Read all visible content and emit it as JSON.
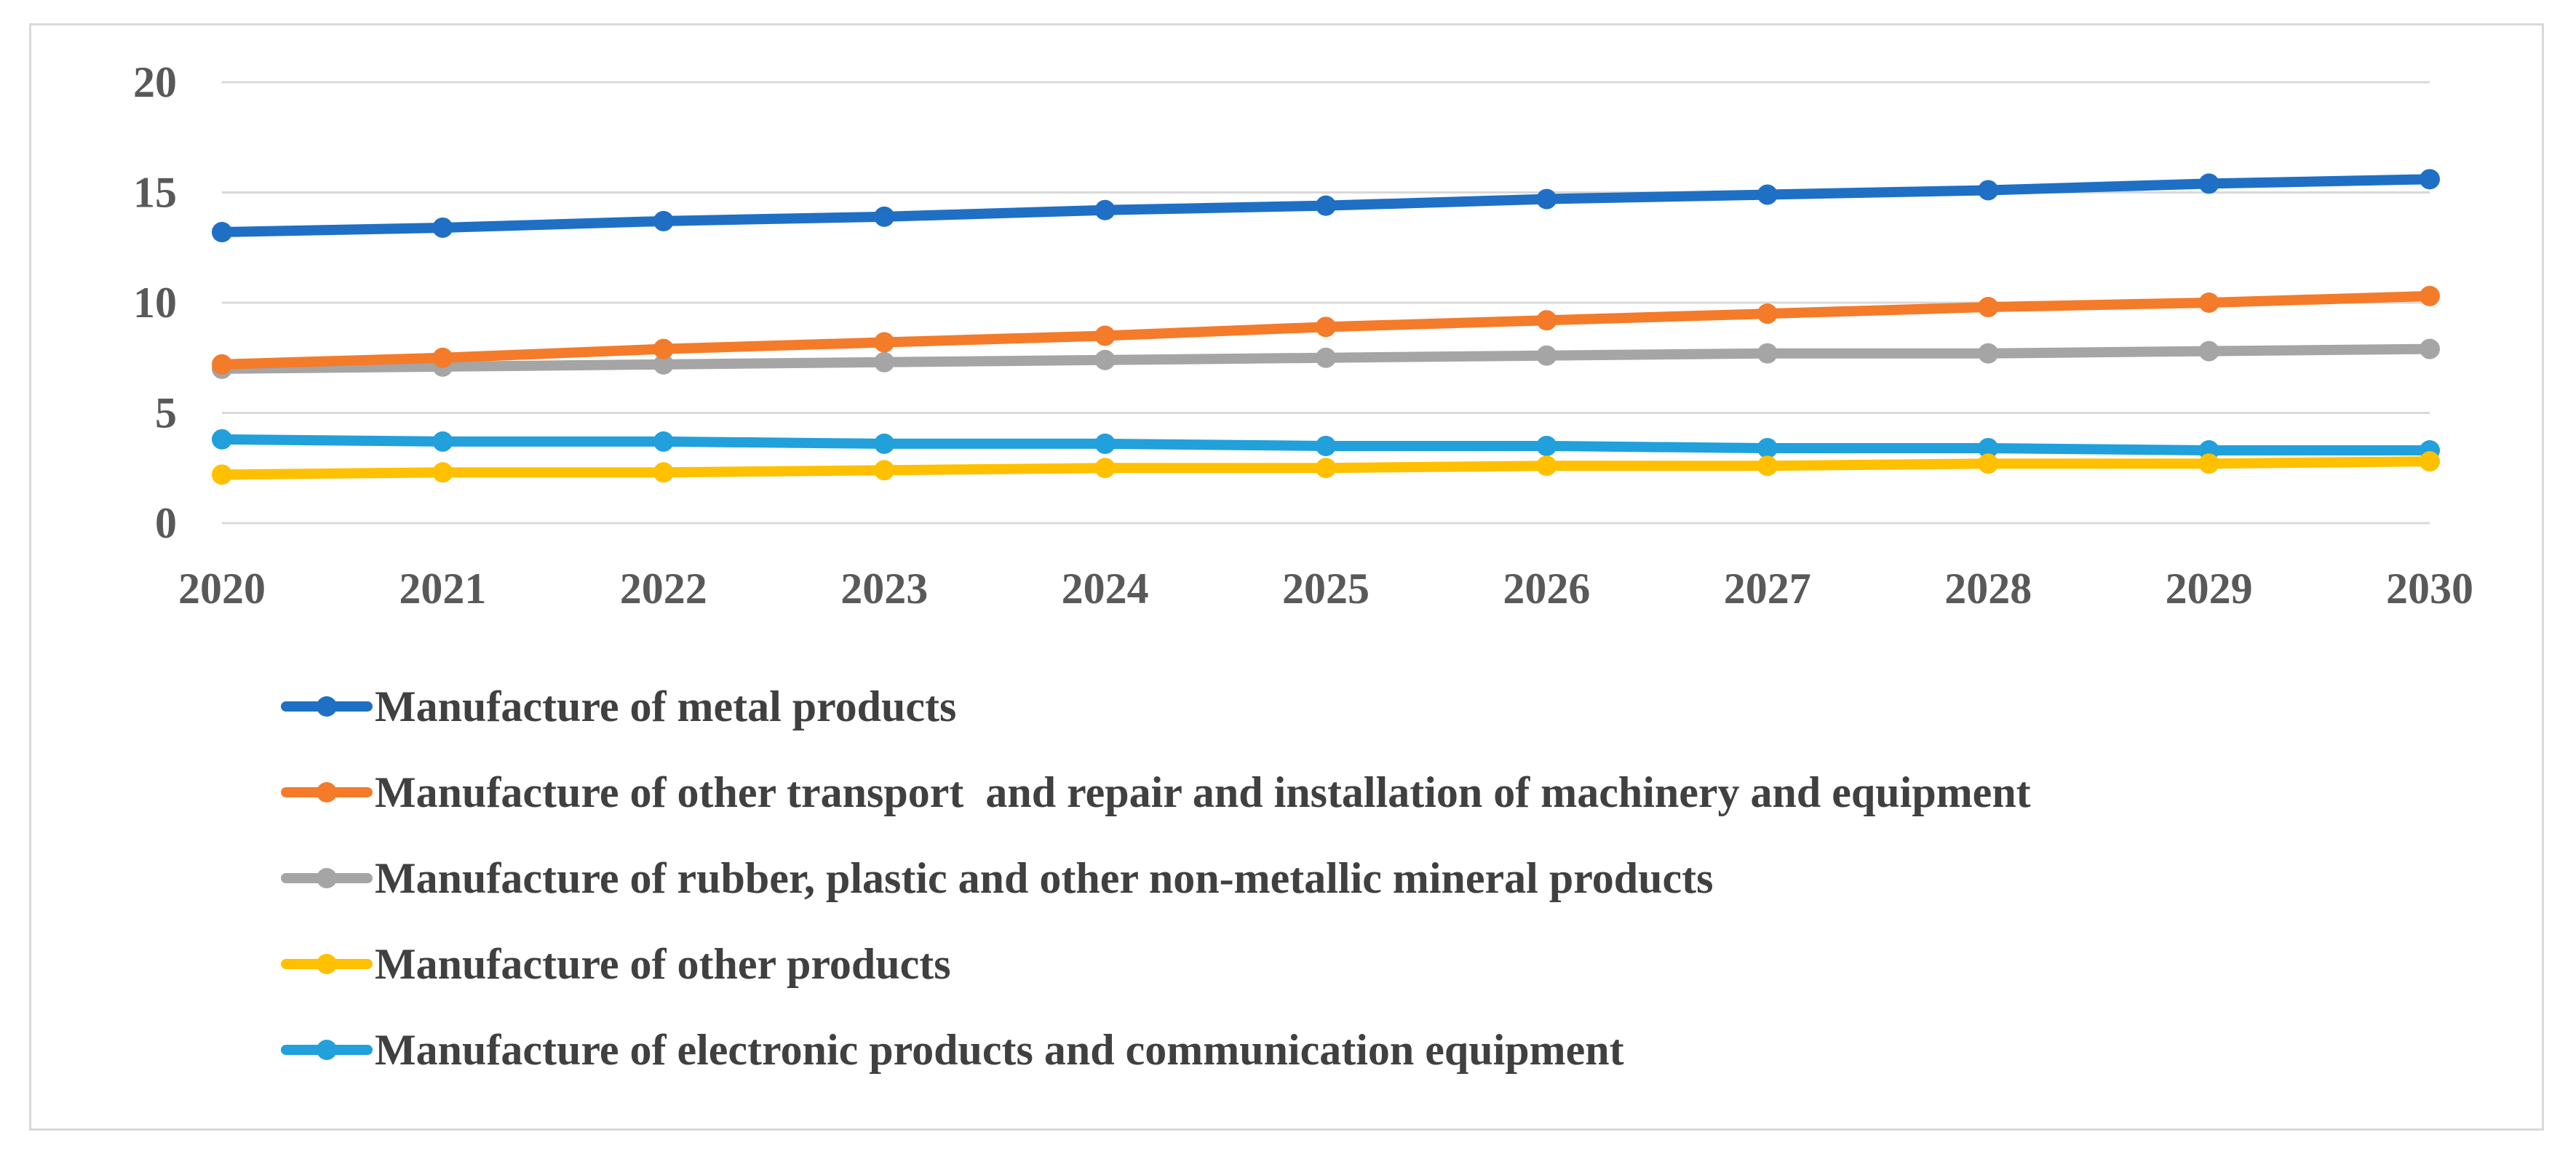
{
  "chart_data": {
    "type": "line",
    "title": "",
    "xlabel": "",
    "ylabel": "",
    "x": [
      2020,
      2021,
      2022,
      2023,
      2024,
      2025,
      2026,
      2027,
      2028,
      2029,
      2030
    ],
    "ylim": [
      0,
      20
    ],
    "yticks": [
      0,
      5,
      10,
      15,
      20
    ],
    "grid": true,
    "legend_position": "bottom",
    "series": [
      {
        "name": "Manufacture of metal products",
        "color": "#1f6fc5",
        "values": [
          13.2,
          13.4,
          13.7,
          13.9,
          14.2,
          14.4,
          14.7,
          14.9,
          15.1,
          15.4,
          15.6
        ]
      },
      {
        "name": "Manufacture of other transport  and repair and installation of machinery and equipment",
        "color": "#f47b2a",
        "values": [
          7.2,
          7.5,
          7.9,
          8.2,
          8.5,
          8.9,
          9.2,
          9.5,
          9.8,
          10.0,
          10.3
        ]
      },
      {
        "name": "Manufacture of rubber, plastic and other non-metallic mineral products",
        "color": "#a5a5a5",
        "values": [
          7.0,
          7.1,
          7.2,
          7.3,
          7.4,
          7.5,
          7.6,
          7.7,
          7.7,
          7.8,
          7.9
        ]
      },
      {
        "name": "Manufacture of other products",
        "color": "#ffc000",
        "values": [
          2.2,
          2.3,
          2.3,
          2.4,
          2.5,
          2.5,
          2.6,
          2.6,
          2.7,
          2.7,
          2.8
        ]
      },
      {
        "name": "Manufacture of electronic products and communication equipment",
        "color": "#21a0db",
        "values": [
          3.8,
          3.7,
          3.7,
          3.6,
          3.6,
          3.5,
          3.5,
          3.4,
          3.4,
          3.3,
          3.3
        ]
      }
    ]
  }
}
